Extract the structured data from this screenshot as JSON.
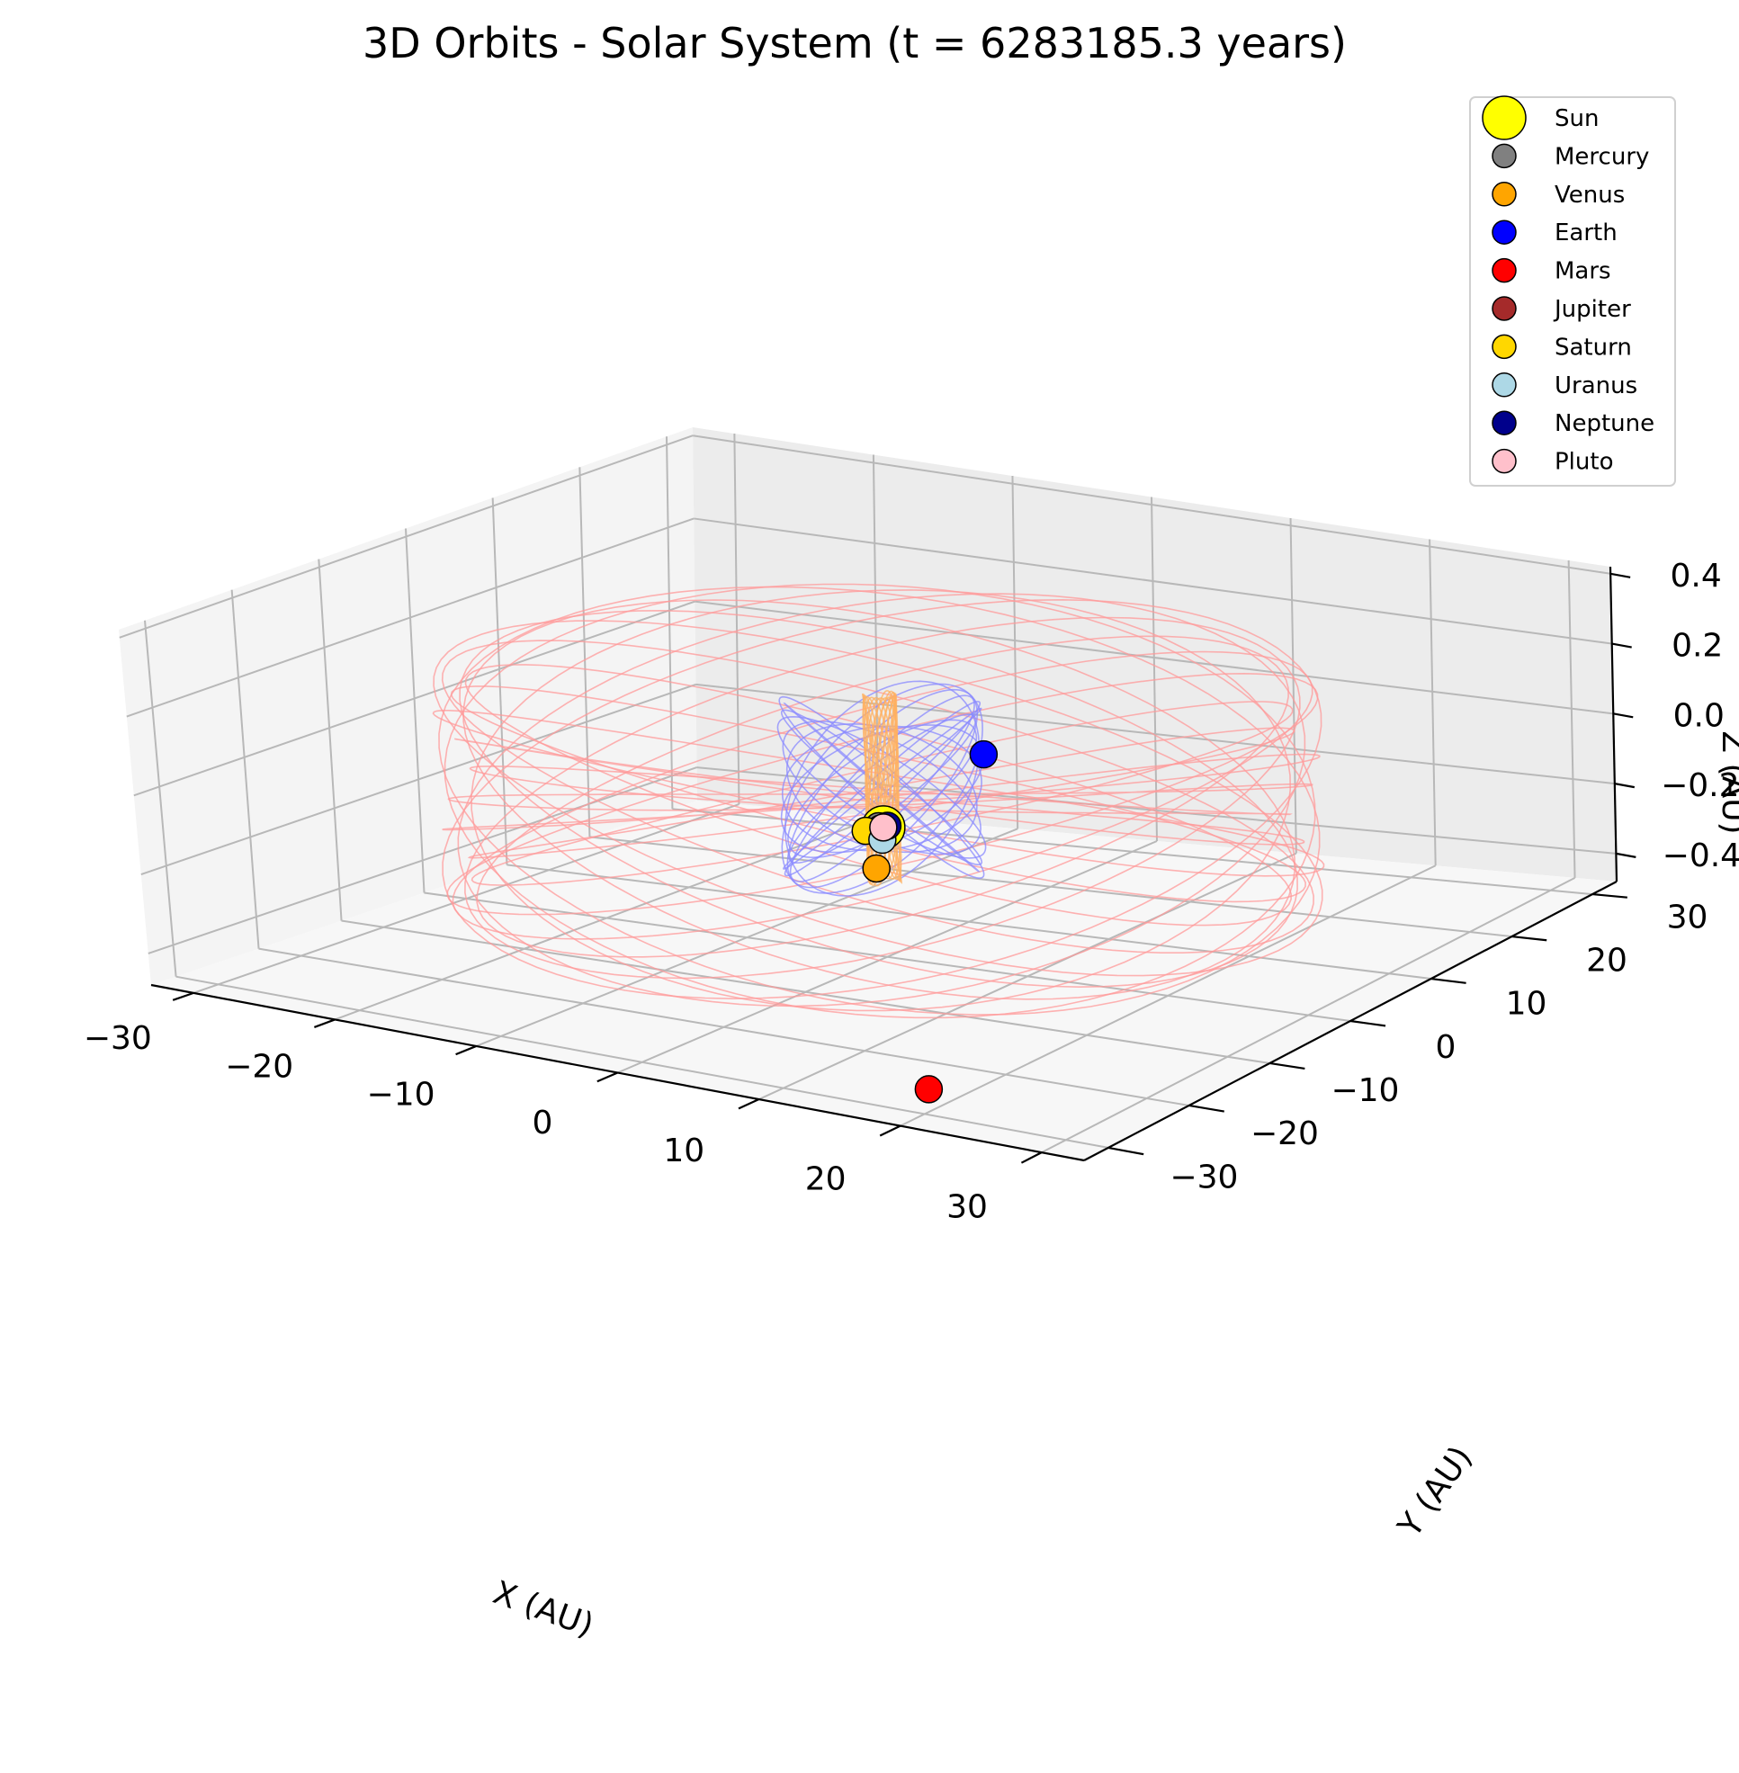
{
  "chart_data": {
    "type": "scatter",
    "projection": "3d",
    "title": "3D Orbits - Solar System (t = 6283185.3 years)",
    "xlabel": "X (AU)",
    "ylabel": "Y (AU)",
    "zlabel": "Z (AU)",
    "xlim": [
      -33,
      33
    ],
    "ylim": [
      -33,
      33
    ],
    "zlim": [
      -0.48,
      0.42
    ],
    "xticks": [
      -30,
      -20,
      -10,
      0,
      10,
      20,
      30
    ],
    "yticks": [
      -30,
      -20,
      -10,
      0,
      10,
      20,
      30
    ],
    "zticks": [
      -0.4,
      -0.2,
      0.0,
      0.2,
      0.4
    ],
    "xtick_labels": [
      "−30",
      "−20",
      "−10",
      "0",
      "10",
      "20",
      "30"
    ],
    "ytick_labels": [
      "−30",
      "−20",
      "−10",
      "0",
      "10",
      "20",
      "30"
    ],
    "ztick_labels": [
      "−0.4",
      "−0.2",
      "0.0",
      "0.2",
      "0.4"
    ],
    "grid": true,
    "legend_position": "top-right",
    "series": [
      {
        "name": "Sun",
        "color": "#ffff00",
        "size": "large",
        "x": 0,
        "y": 0,
        "z": -0.15
      },
      {
        "name": "Mercury",
        "color": "#808080",
        "size": "small",
        "x": -0.4,
        "y": 0.1,
        "z": -0.15
      },
      {
        "name": "Venus",
        "color": "#ffa500",
        "size": "small",
        "x": -0.7,
        "y": 0.2,
        "z": -0.26
      },
      {
        "name": "Earth",
        "color": "#0000ff",
        "size": "small",
        "x": 5.5,
        "y": 3,
        "z": 0.04
      },
      {
        "name": "Mars",
        "color": "#ff0000",
        "size": "small",
        "x": 18,
        "y": -26,
        "z": -0.47
      },
      {
        "name": "Jupiter",
        "color": "#a52a2a",
        "size": "small",
        "x": -0.5,
        "y": 0.5,
        "z": -0.16
      },
      {
        "name": "Saturn",
        "color": "#ffd700",
        "size": "small",
        "x": -1.5,
        "y": 0.4,
        "z": -0.17
      },
      {
        "name": "Uranus",
        "color": "#add8e6",
        "size": "small",
        "x": 0.5,
        "y": -1,
        "z": -0.17
      },
      {
        "name": "Neptune",
        "color": "#00008b",
        "size": "small",
        "x": 0,
        "y": 0.5,
        "z": -0.15
      },
      {
        "name": "Pluto",
        "color": "#ffc0cb",
        "size": "small",
        "x": 0,
        "y": 0,
        "z": -0.15
      }
    ],
    "orbit_traces": [
      {
        "color": "#ff9a9a",
        "radius": 26,
        "z_amplitude": 0.28
      },
      {
        "color": "#8a8aff",
        "radius": 6,
        "z_amplitude": 0.22
      },
      {
        "color": "#ffb060",
        "radius": 1,
        "z_amplitude": 0.24
      }
    ]
  }
}
